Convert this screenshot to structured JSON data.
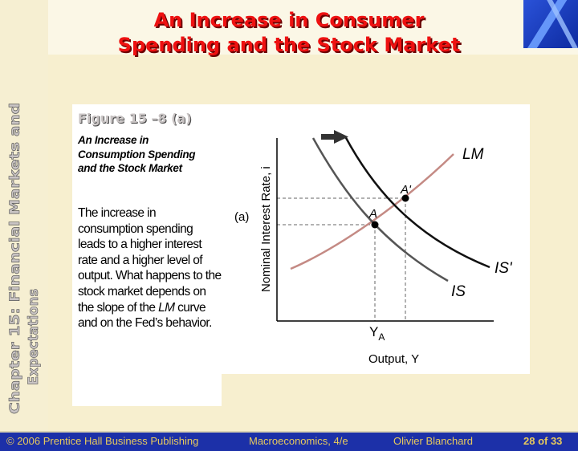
{
  "slide": {
    "title_line1": "An Increase in Consumer",
    "title_line2": "Spending and the Stock Market",
    "side_title_line1": "Chapter 15: Financial Markets and",
    "side_title_line2": "Expectations"
  },
  "figure": {
    "label": "Figure 15 –8 (a)",
    "subtitle": "An Increase in Consumption Spending and the Stock Market",
    "body_before": "The increase in consumption spending leads to a higher interest rate and a higher level of output. What happens to the stock market depends on the slope of the ",
    "body_italic": "LM",
    "body_after": " curve and on the Fed’s behavior."
  },
  "diagram": {
    "panel_label": "(a)",
    "y_axis_label": "Nominal Interest Rate, i",
    "x_axis_label": "Output, Y",
    "curves": {
      "lm": "LM",
      "is": "IS",
      "is_shifted": "IS'"
    },
    "points": {
      "a": "A",
      "a_prime": "A'"
    },
    "x_tick_label": "Y",
    "x_tick_sub": "A",
    "colors": {
      "lm": "#c48a84",
      "is": "#555555",
      "is_shifted": "#111111",
      "guides": "#666666",
      "shift_arrow": "#333333"
    }
  },
  "footer": {
    "publisher": "© 2006 Prentice Hall Business Publishing",
    "book": "Macroeconomics, 4/e",
    "author": "Olivier Blanchard",
    "page": "28 of 33"
  }
}
